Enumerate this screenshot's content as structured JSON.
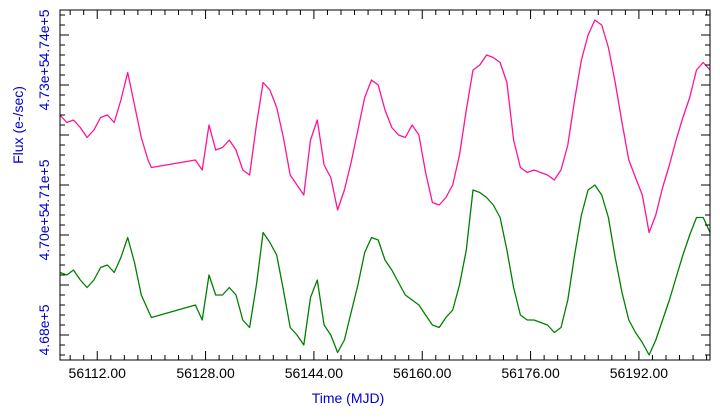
{
  "chart_data": {
    "type": "line",
    "title": "",
    "xlabel": "Time (MJD)",
    "ylabel": "Flux (e-/sec)",
    "y_offset_label": "4.68e+5",
    "xlim": [
      56106.5,
      56202.5
    ],
    "ylim": [
      46750,
      47450
    ],
    "x_ticks": [
      56112.0,
      56128.0,
      56144.0,
      56160.0,
      56176.0,
      56192.0
    ],
    "x_tick_labels": [
      "56112.00",
      "56128.00",
      "56144.00",
      "56160.00",
      "56176.00",
      "56192.00"
    ],
    "y_ticks": [
      47000,
      47100,
      47300,
      47400
    ],
    "y_tick_labels": [
      "4.70e+5",
      "4.71e+5",
      "4.73e+5",
      "4.74e+5"
    ],
    "series": [
      {
        "color": "#ff1493",
        "x": [
          56106.5,
          56107.5,
          56108.5,
          56109.5,
          56110.5,
          56111.5,
          56112.5,
          56113.5,
          56114.5,
          56115.5,
          56116.5,
          56117.5,
          56118.5,
          56119.5,
          56120.0,
          56126.5,
          56127.5,
          56128.5,
          56129.5,
          56130.5,
          56131.5,
          56132.5,
          56133.5,
          56134.5,
          56135.5,
          56136.5,
          56137.5,
          56138.5,
          56139.5,
          56140.5,
          56141.5,
          56142.5,
          56143.5,
          56144.5,
          56145.5,
          56146.5,
          56147.5,
          56148.5,
          56149.5,
          56150.5,
          56151.5,
          56152.5,
          56153.5,
          56154.5,
          56155.5,
          56156.5,
          56157.5,
          56158.5,
          56159.5,
          56160.5,
          56161.5,
          56162.5,
          56163.5,
          56164.5,
          56165.5,
          56166.5,
          56167.5,
          56168.5,
          56169.5,
          56170.5,
          56171.5,
          56172.5,
          56173.5,
          56174.5,
          56175.5,
          56176.5,
          56177.5,
          56178.5,
          56179.5,
          56180.5,
          56181.5,
          56182.5,
          56183.5,
          56184.5,
          56185.5,
          56186.5,
          56187.5,
          56188.5,
          56189.5,
          56190.5,
          56191.5,
          56192.5,
          56193.5,
          56194.5,
          56195.5,
          56196.5,
          56197.5,
          56198.5,
          56199.5,
          56200.5,
          56201.5,
          56202.5
        ],
        "y": [
          47240,
          47225,
          47230,
          47215,
          47195,
          47210,
          47235,
          47240,
          47225,
          47270,
          47325,
          47260,
          47195,
          47150,
          47135,
          47150,
          47130,
          47220,
          47170,
          47175,
          47190,
          47170,
          47130,
          47120,
          47220,
          47305,
          47290,
          47255,
          47195,
          47120,
          47100,
          47080,
          47190,
          47230,
          47140,
          47115,
          47050,
          47090,
          47145,
          47210,
          47275,
          47310,
          47300,
          47250,
          47215,
          47200,
          47195,
          47220,
          47200,
          47125,
          47065,
          47060,
          47075,
          47100,
          47160,
          47250,
          47330,
          47340,
          47360,
          47355,
          47345,
          47305,
          47190,
          47135,
          47125,
          47130,
          47125,
          47120,
          47110,
          47130,
          47180,
          47270,
          47350,
          47400,
          47430,
          47420,
          47375,
          47305,
          47225,
          47150,
          47115,
          47080,
          47005,
          47040,
          47095,
          47140,
          47190,
          47235,
          47275,
          47330,
          47345,
          47330
        ]
      },
      {
        "color": "#008000",
        "x": [
          56106.5,
          56107.5,
          56108.5,
          56109.5,
          56110.5,
          56111.5,
          56112.5,
          56113.5,
          56114.5,
          56115.5,
          56116.5,
          56117.5,
          56118.5,
          56119.5,
          56120.0,
          56126.5,
          56127.5,
          56128.5,
          56129.5,
          56130.5,
          56131.5,
          56132.5,
          56133.5,
          56134.5,
          56135.5,
          56136.5,
          56137.5,
          56138.5,
          56139.5,
          56140.5,
          56141.5,
          56142.5,
          56143.5,
          56144.5,
          56145.5,
          56146.5,
          56147.5,
          56148.5,
          56149.5,
          56150.5,
          56151.5,
          56152.5,
          56153.5,
          56154.5,
          56155.5,
          56156.5,
          56157.5,
          56158.5,
          56159.5,
          56160.5,
          56161.5,
          56162.5,
          56163.5,
          56164.5,
          56165.5,
          56166.5,
          56167.5,
          56168.5,
          56169.5,
          56170.5,
          56171.5,
          56172.5,
          56173.5,
          56174.5,
          56175.5,
          56176.5,
          56177.5,
          56178.5,
          56179.5,
          56180.5,
          56181.5,
          56182.5,
          56183.5,
          56184.5,
          56185.5,
          56186.5,
          56187.5,
          56188.5,
          56189.5,
          56190.5,
          56191.5,
          56192.5,
          56193.5,
          56194.5,
          56195.5,
          56196.5,
          56197.5,
          56198.5,
          56199.5,
          56200.5,
          56201.5,
          56202.5
        ],
        "y": [
          46925,
          46920,
          46930,
          46910,
          46895,
          46910,
          46935,
          46940,
          46925,
          46955,
          46995,
          46945,
          46880,
          46850,
          46835,
          46860,
          46830,
          46920,
          46880,
          46880,
          46895,
          46880,
          46830,
          46815,
          46900,
          47005,
          46985,
          46960,
          46890,
          46815,
          46800,
          46780,
          46875,
          46910,
          46820,
          46800,
          46765,
          46790,
          46845,
          46900,
          46965,
          46995,
          46990,
          46950,
          46930,
          46905,
          46880,
          46870,
          46860,
          46840,
          46820,
          46815,
          46835,
          46850,
          46900,
          46970,
          47090,
          47085,
          47075,
          47060,
          47035,
          46970,
          46895,
          46840,
          46830,
          46830,
          46825,
          46820,
          46805,
          46815,
          46870,
          46960,
          47040,
          47090,
          47100,
          47080,
          47035,
          46955,
          46885,
          46830,
          46805,
          46785,
          46760,
          46790,
          46830,
          46870,
          46915,
          46960,
          47000,
          47035,
          47035,
          47005
        ]
      }
    ]
  }
}
